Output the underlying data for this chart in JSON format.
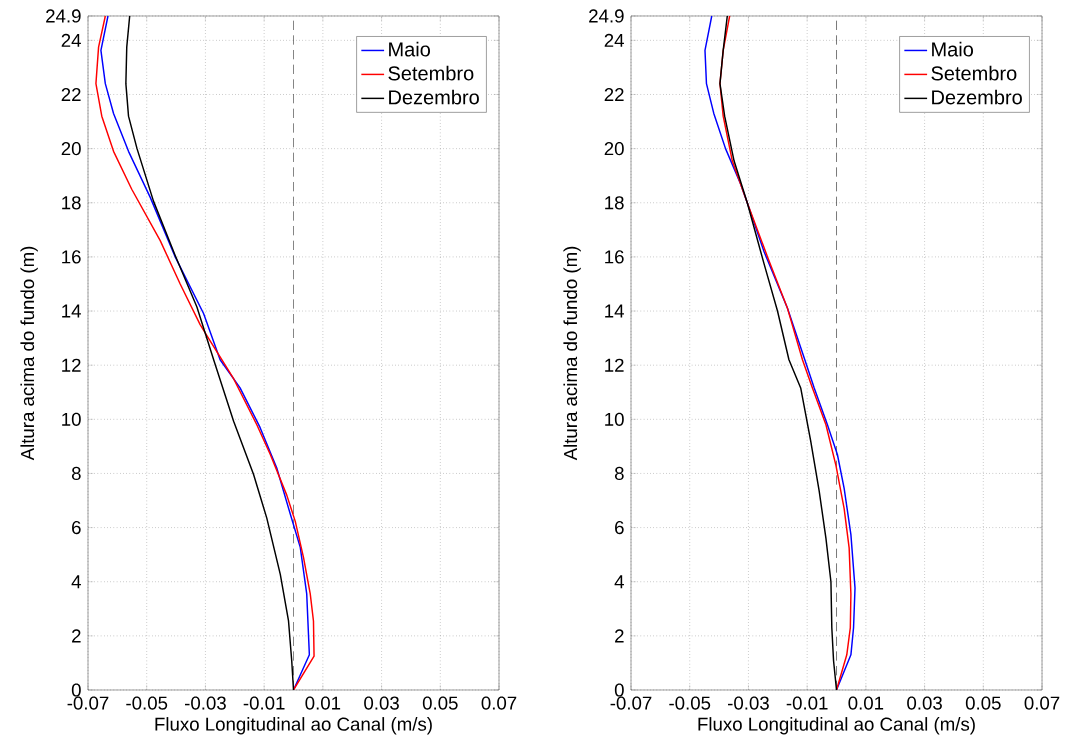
{
  "chart_data": [
    {
      "type": "line",
      "xlabel": "Fluxo Longitudinal ao Canal (m/s)",
      "ylabel": "Altura acima do fundo (m)",
      "xlim": [
        -0.07,
        0.07
      ],
      "ylim": [
        0,
        24.9
      ],
      "xticks": [
        -0.07,
        -0.05,
        -0.03,
        -0.01,
        0.01,
        0.03,
        0.05,
        0.07
      ],
      "yticks": [
        0,
        2,
        4,
        6,
        8,
        10,
        12,
        14,
        16,
        18,
        20,
        22,
        24,
        24.9
      ],
      "grid": true,
      "legend": "top right",
      "ref_lines": [
        {
          "axis": "x",
          "value": 0,
          "color": "#000000",
          "line_style": "dashed"
        }
      ],
      "series": [
        {
          "name": "Maio",
          "color": "#0000ff",
          "x": [
            0,
            0.0054,
            0.0045,
            0.0023,
            -0.0011,
            -0.0057,
            -0.0114,
            -0.0182,
            -0.025,
            -0.0306,
            -0.0403,
            -0.0488,
            -0.0562,
            -0.0613,
            -0.0641,
            -0.0656,
            -0.0632
          ],
          "values": [
            0,
            1.3,
            3.55,
            5.27,
            6.5,
            8.2,
            9.7,
            11.16,
            12.2,
            13.9,
            16,
            18.2,
            19.9,
            21.3,
            22.4,
            23.63,
            24.9
          ]
        },
        {
          "name": "Setembro",
          "color": "#ff0000",
          "x": [
            0,
            0.007,
            0.0068,
            0.0057,
            0.0034,
            0.0006,
            -0.0023,
            -0.0079,
            -0.0125,
            -0.0204,
            -0.0284,
            -0.0318,
            -0.0386,
            -0.0454,
            -0.0551,
            -0.0613,
            -0.0653,
            -0.0673,
            -0.0664,
            -0.0641
          ],
          "values": [
            0,
            1.25,
            2.55,
            3.55,
            4.9,
            6.23,
            7.2,
            8.7,
            9.8,
            11.5,
            12.9,
            13.5,
            15,
            16.6,
            18.5,
            19.9,
            21.2,
            22.4,
            23.75,
            24.9
          ]
        },
        {
          "name": "Dezembro",
          "color": "#000000",
          "x": [
            0,
            -0.0006,
            -0.0017,
            -0.0045,
            -0.0091,
            -0.0136,
            -0.0204,
            -0.0272,
            -0.0329,
            -0.0403,
            -0.0477,
            -0.0533,
            -0.0562,
            -0.0571,
            -0.0568,
            -0.0558
          ],
          "values": [
            0,
            1.07,
            2.55,
            4.27,
            6.35,
            7.96,
            9.93,
            12.2,
            14.15,
            16.05,
            18.06,
            20,
            21.2,
            22.4,
            23.75,
            24.9
          ]
        }
      ]
    },
    {
      "type": "line",
      "xlabel": "Fluxo Longitudinal ao Canal (m/s)",
      "ylabel": "Altura acima do fundo (m)",
      "xlim": [
        -0.07,
        0.07
      ],
      "ylim": [
        0,
        24.9
      ],
      "xticks": [
        -0.07,
        -0.05,
        -0.03,
        -0.01,
        0.01,
        0.03,
        0.05,
        0.07
      ],
      "yticks": [
        0,
        2,
        4,
        6,
        8,
        10,
        12,
        14,
        16,
        18,
        20,
        22,
        24,
        24.9
      ],
      "grid": true,
      "legend": "top right",
      "ref_lines": [
        {
          "axis": "x",
          "value": 0,
          "color": "#000000",
          "line_style": "dashed"
        }
      ],
      "series": [
        {
          "name": "Maio",
          "color": "#0000ff",
          "x": [
            0,
            0.0049,
            0.0058,
            0.0063,
            0.0049,
            0.0026,
            0.0003,
            -0.0031,
            -0.0076,
            -0.0108,
            -0.0167,
            -0.0247,
            -0.0304,
            -0.0327,
            -0.0378,
            -0.0418,
            -0.0443,
            -0.0448,
            -0.0425
          ],
          "values": [
            0,
            1.3,
            2.3,
            3.77,
            5.74,
            7.45,
            8.7,
            9.8,
            11.16,
            12.2,
            14.1,
            16.2,
            18,
            18.7,
            20,
            21.3,
            22.4,
            23.63,
            24.9
          ]
        },
        {
          "name": "Setembro",
          "color": "#ff0000",
          "x": [
            0,
            0.0035,
            0.0047,
            0.0049,
            0.0043,
            0.0026,
            -0.0002,
            -0.0036,
            -0.0082,
            -0.0116,
            -0.0167,
            -0.0235,
            -0.0304,
            -0.0355,
            -0.0386,
            -0.0397,
            -0.0386,
            -0.0364
          ],
          "values": [
            0,
            1.3,
            2.3,
            3.55,
            5.25,
            6.7,
            8.3,
            9.8,
            11.16,
            12.2,
            14.1,
            16,
            18,
            19.55,
            21.2,
            22.4,
            23.63,
            24.9
          ]
        },
        {
          "name": "Dezembro",
          "color": "#000000",
          "x": [
            0,
            -0.001,
            -0.0016,
            -0.0019,
            -0.0036,
            -0.0059,
            -0.0088,
            -0.0122,
            -0.0162,
            -0.0201,
            -0.0247,
            -0.0304,
            -0.0349,
            -0.0381,
            -0.0397,
            -0.0386,
            -0.0372
          ],
          "values": [
            0,
            1.07,
            2.3,
            4,
            5.6,
            7.35,
            9.2,
            11.16,
            12.2,
            14,
            15.75,
            18,
            19.55,
            21.2,
            22.4,
            23.63,
            24.9
          ]
        }
      ]
    }
  ]
}
